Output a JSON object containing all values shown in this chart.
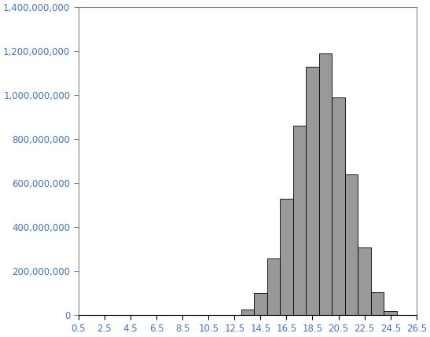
{
  "bar_left_edges": [
    13,
    14,
    15,
    16,
    17,
    18,
    19,
    20,
    21,
    22,
    23,
    24
  ],
  "bar_heights": [
    25000000,
    100000000,
    260000000,
    530000000,
    860000000,
    1130000000,
    1190000000,
    990000000,
    640000000,
    310000000,
    105000000,
    20000000
  ],
  "bar_color": "#999999",
  "bar_edgecolor": "#000000",
  "bar_width": 1.0,
  "xlim": [
    0.5,
    26.5
  ],
  "ylim": [
    0,
    1400000000
  ],
  "xticks": [
    0.5,
    2.5,
    4.5,
    6.5,
    8.5,
    10.5,
    12.5,
    14.5,
    16.5,
    18.5,
    20.5,
    22.5,
    24.5,
    26.5
  ],
  "yticks": [
    0,
    200000000,
    400000000,
    600000000,
    800000000,
    1000000000,
    1200000000,
    1400000000
  ],
  "ytick_labels": [
    "0",
    "200,000,000",
    "400,000,000",
    "600,000,000",
    "800,000,000",
    "1,000,000,000",
    "1,200,000,000",
    "1,400,000,000"
  ],
  "xtick_labels": [
    "0.5",
    "2.5",
    "4.5",
    "6.5",
    "8.5",
    "10.5",
    "12.5",
    "14.5",
    "16.5",
    "18.5",
    "20.5",
    "22.5",
    "24.5",
    "26.5"
  ],
  "background_color": "#ffffff",
  "tick_color": "#4472c4",
  "spine_color": "#808080",
  "label_fontsize": 8.5
}
